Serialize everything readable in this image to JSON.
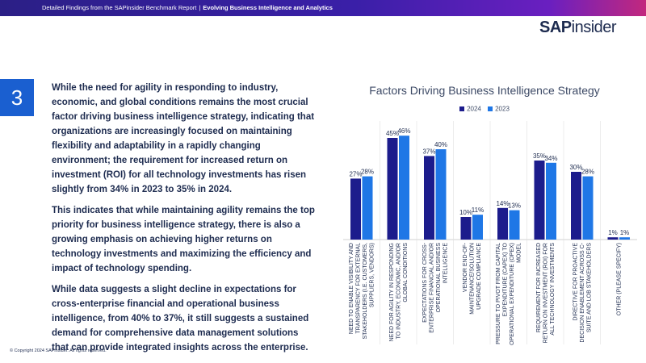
{
  "header": {
    "report_label": "Detailed Findings from the SAPinsider Benchmark Report",
    "separator": "|",
    "report_topic": "Evolving Business Intelligence and Analytics"
  },
  "logo": {
    "sap": "SAP",
    "rest": "insider"
  },
  "section_number": "3",
  "paragraphs": [
    "While the need for agility in responding to industry, economic, and global conditions remains the most crucial factor driving business intelligence strategy, indicating that organizations are increasingly focused on maintaining flexibility and adaptability in a rapidly changing environment; the requirement for increased return on investment (ROI) for all technology investments has risen slightly from 34% in 2023 to 35% in 2024.",
    "This indicates that while maintaining agility remains the top priority for business intelligence strategy, there is also a growing emphasis on achieving higher returns on technology investments and maximizing the efficiency and impact of technology spending.",
    "While data suggests a slight decline in expectations for cross-enterprise financial and operational business intelligence, from 40% to 37%, it still suggests a sustained demand for comprehensive data management solutions that can provide integrated insights across the enterprise."
  ],
  "copyright": "© Copyright 2024 SAPinsider. All rights reserved.",
  "colors": {
    "series_2024": "#1c1c8c",
    "series_2023": "#1f77e6",
    "accent": "#1a5fd0"
  },
  "chart_data": {
    "type": "bar",
    "title": "Factors Driving Business Intelligence Strategy",
    "categories": [
      [
        "NEED TO ENABLE VISIBILITY AND",
        "TRANSPARENCY FOR EXTERNAL",
        "STAKEHOLDERS (I.E. CUSTOMERS,",
        "SUPPLIERS, VENDORS)"
      ],
      [
        "NEED FOR AGILITY IN RESPONDING",
        "TO INDUSTRY, ECONOMIC, AND/OR",
        "GLOBAL CONDITIONS"
      ],
      [
        "EXPECTATIONS FOR CROSS-",
        "ENTERPRISE FINANCIAL AND/OR",
        "OPERATIONAL BUSINESS",
        "INTELLIGENCE"
      ],
      [
        "VENDOR END-OF-",
        "MAINTENANCE/SOLUTION",
        "UPGRADE COMPLIANCE"
      ],
      [
        "PRESSURE TO PIVOT FROM CAPITAL",
        "EXPENDITURE (CAPEX) TO",
        "OPERATIONAL EXPENDITURE (OPEX)",
        "MODEL"
      ],
      [
        "REQUIREMENT FOR INCREASED",
        "RETURN ON INVESTMENT (ROI) FOR",
        "ALL TECHNOLOGY INVESTMENTS"
      ],
      [
        "DIRECTIVE FOR PROACTIVE",
        "DECISION ENABLEMENT ACROSS C-",
        "SUITE AND LOB STAKEHOLDERS"
      ],
      [
        "OTHER (PLEASE SPECIFY)"
      ]
    ],
    "series": [
      {
        "name": "2024",
        "values": [
          27,
          45,
          37,
          10,
          14,
          35,
          30,
          1
        ],
        "labels": [
          "27%",
          "45%",
          "37%",
          "10%",
          "14%",
          "35%",
          "30%",
          "1%"
        ]
      },
      {
        "name": "2023",
        "values": [
          28,
          46,
          40,
          11,
          13,
          34,
          28,
          1
        ],
        "labels": [
          "28%",
          "46%",
          "40%",
          "11%",
          "13%",
          "34%",
          "28%",
          "1%"
        ]
      }
    ],
    "ylim": [
      0,
      50
    ],
    "legend_position": "top-center",
    "grid": false
  }
}
